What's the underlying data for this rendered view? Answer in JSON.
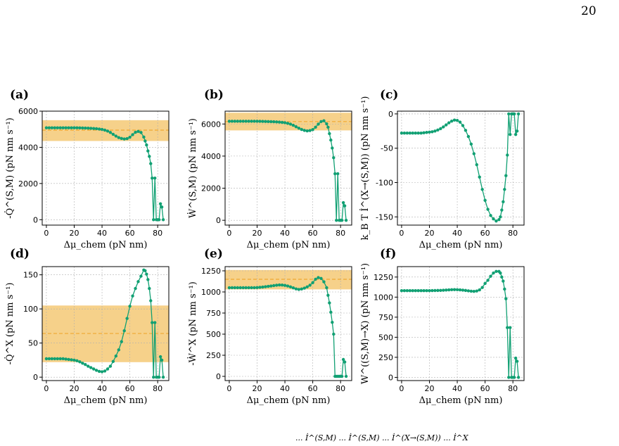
{
  "page": {
    "number": "20"
  },
  "colors": {
    "line": "#11a073",
    "band": "#f3c263",
    "band_line": "#f0a830",
    "grid": "#b0b0b0"
  },
  "chart_data": [
    {
      "letter": "(a)",
      "type": "line",
      "ylabel": "-Q̇^(S,M) (pN nm s⁻¹)",
      "xlabel": "Δμ_chem (pN nm)",
      "xlim": [
        -3,
        88
      ],
      "ylim": [
        -300,
        6000
      ],
      "xticks": [
        "0",
        "20",
        "40",
        "60",
        "80"
      ],
      "xtick_values": [
        0,
        20,
        40,
        60,
        80
      ],
      "yticks": [
        "0",
        "2000",
        "4000",
        "6000"
      ],
      "ytick_values": [
        0,
        2000,
        4000,
        6000
      ],
      "band": [
        4350,
        5500
      ],
      "mean": 4950,
      "x": [
        0,
        2,
        4,
        6,
        8,
        10,
        12,
        14,
        16,
        18,
        20,
        22,
        24,
        26,
        28,
        30,
        32,
        34,
        36,
        38,
        40,
        42,
        44,
        46,
        48,
        50,
        52,
        54,
        56,
        58,
        60,
        62,
        64,
        66,
        68,
        70,
        71,
        72,
        73,
        74,
        75,
        76,
        77,
        78,
        79,
        80,
        81,
        82,
        83,
        84
      ],
      "values": [
        5080,
        5080,
        5080,
        5080,
        5080,
        5080,
        5080,
        5080,
        5080,
        5080,
        5080,
        5080,
        5075,
        5070,
        5065,
        5060,
        5050,
        5040,
        5030,
        5010,
        4990,
        4950,
        4900,
        4820,
        4720,
        4620,
        4540,
        4490,
        4460,
        4480,
        4560,
        4700,
        4830,
        4880,
        4820,
        4570,
        4350,
        4130,
        3800,
        3500,
        3100,
        2300,
        0,
        2300,
        0,
        0,
        0,
        880,
        700,
        0
      ]
    },
    {
      "letter": "(b)",
      "type": "line",
      "ylabel": "Ẇ^(S,M) (pN nm s⁻¹)",
      "xlabel": "Δμ_chem (pN nm)",
      "xlim": [
        -3,
        88
      ],
      "ylim": [
        -300,
        6800
      ],
      "xticks": [
        "0",
        "20",
        "40",
        "60",
        "80"
      ],
      "xtick_values": [
        0,
        20,
        40,
        60,
        80
      ],
      "yticks": [
        "0",
        "2000",
        "4000",
        "6000"
      ],
      "ytick_values": [
        0,
        2000,
        4000,
        6000
      ],
      "band": [
        5600,
        6700
      ],
      "mean": 6150,
      "x": [
        0,
        2,
        4,
        6,
        8,
        10,
        12,
        14,
        16,
        18,
        20,
        22,
        24,
        26,
        28,
        30,
        32,
        34,
        36,
        38,
        40,
        42,
        44,
        46,
        48,
        50,
        52,
        54,
        56,
        58,
        60,
        62,
        64,
        66,
        68,
        70,
        71,
        72,
        73,
        74,
        75,
        76,
        77,
        78,
        79,
        80,
        81,
        82,
        83,
        84
      ],
      "values": [
        6170,
        6170,
        6170,
        6170,
        6170,
        6170,
        6170,
        6170,
        6170,
        6170,
        6170,
        6165,
        6160,
        6155,
        6150,
        6145,
        6140,
        6130,
        6120,
        6100,
        6080,
        6040,
        5990,
        5920,
        5830,
        5740,
        5660,
        5600,
        5570,
        5590,
        5650,
        5800,
        5990,
        6150,
        6200,
        6010,
        5800,
        5400,
        5000,
        4500,
        3900,
        2900,
        0,
        2900,
        0,
        0,
        0,
        1100,
        900,
        0
      ]
    },
    {
      "letter": "(c)",
      "type": "line",
      "ylabel": "k_B T İ^(X→(S,M)) (pN nm s⁻¹)",
      "xlabel": "Δμ_chem (pN nm)",
      "xlim": [
        -3,
        88
      ],
      "ylim": [
        -162,
        4
      ],
      "xticks": [
        "0",
        "20",
        "40",
        "60",
        "80"
      ],
      "xtick_values": [
        0,
        20,
        40,
        60,
        80
      ],
      "yticks": [
        "0",
        "-50",
        "-100",
        "-150"
      ],
      "ytick_values": [
        0,
        -50,
        -100,
        -150
      ],
      "x": [
        0,
        2,
        4,
        6,
        8,
        10,
        12,
        14,
        16,
        18,
        20,
        22,
        24,
        26,
        28,
        30,
        32,
        34,
        36,
        38,
        40,
        42,
        44,
        46,
        48,
        50,
        52,
        54,
        56,
        58,
        60,
        62,
        64,
        66,
        68,
        70,
        71,
        72,
        73,
        74,
        75,
        76,
        77,
        78,
        79,
        80,
        81,
        82,
        83,
        84
      ],
      "values": [
        -28,
        -28,
        -28,
        -28,
        -28,
        -28,
        -28,
        -28,
        -27.5,
        -27,
        -26.5,
        -26,
        -25,
        -23.5,
        -21.5,
        -19,
        -16,
        -13,
        -10.5,
        -9,
        -9.5,
        -12,
        -17,
        -24,
        -33,
        -44,
        -58,
        -74,
        -92,
        -110,
        -126,
        -139,
        -148,
        -153,
        -156,
        -154,
        -150,
        -140,
        -128,
        -110,
        -90,
        -60,
        0,
        -30,
        0,
        0,
        0,
        -30,
        -25,
        0
      ]
    },
    {
      "letter": "(d)",
      "type": "line",
      "ylabel": "-Q̇^X (pN nm s⁻¹)",
      "xlabel": "Δμ_chem (pN nm)",
      "xlim": [
        -3,
        88
      ],
      "ylim": [
        -5,
        162
      ],
      "xticks": [
        "0",
        "20",
        "40",
        "60",
        "80"
      ],
      "xtick_values": [
        0,
        20,
        40,
        60,
        80
      ],
      "yticks": [
        "0",
        "50",
        "100",
        "150"
      ],
      "ytick_values": [
        0,
        50,
        100,
        150
      ],
      "band": [
        22,
        105
      ],
      "mean": 64,
      "x": [
        0,
        2,
        4,
        6,
        8,
        10,
        12,
        14,
        16,
        18,
        20,
        22,
        24,
        26,
        28,
        30,
        32,
        34,
        36,
        38,
        40,
        42,
        44,
        46,
        48,
        50,
        52,
        54,
        56,
        58,
        60,
        62,
        64,
        66,
        68,
        70,
        71,
        72,
        73,
        74,
        75,
        76,
        77,
        78,
        79,
        80,
        81,
        82,
        83,
        84
      ],
      "values": [
        27,
        27,
        27,
        27,
        27,
        27,
        27,
        26.5,
        26,
        25.5,
        25,
        24,
        22.5,
        20.5,
        18.5,
        16,
        14,
        12,
        10,
        8.5,
        8,
        9,
        12,
        16,
        23,
        31,
        40,
        52,
        68,
        86,
        104,
        119,
        130,
        140,
        148,
        157,
        156,
        151,
        143,
        130,
        112,
        80,
        0,
        80,
        0,
        0,
        0,
        30,
        25,
        0
      ]
    },
    {
      "letter": "(e)",
      "type": "line",
      "ylabel": "-Ẇ^X (pN nm s⁻¹)",
      "xlabel": "Δμ_chem (pN nm)",
      "xlim": [
        -3,
        88
      ],
      "ylim": [
        -50,
        1300
      ],
      "xticks": [
        "0",
        "20",
        "40",
        "60",
        "80"
      ],
      "xtick_values": [
        0,
        20,
        40,
        60,
        80
      ],
      "yticks": [
        "0",
        "250",
        "500",
        "750",
        "1000",
        "1250"
      ],
      "ytick_values": [
        0,
        250,
        500,
        750,
        1000,
        1250
      ],
      "band": [
        1030,
        1260
      ],
      "mean": 1150,
      "x": [
        0,
        2,
        4,
        6,
        8,
        10,
        12,
        14,
        16,
        18,
        20,
        22,
        24,
        26,
        28,
        30,
        32,
        34,
        36,
        38,
        40,
        42,
        44,
        46,
        48,
        50,
        52,
        54,
        56,
        58,
        60,
        62,
        64,
        66,
        68,
        70,
        71,
        72,
        73,
        74,
        75,
        76,
        77,
        78,
        79,
        80,
        81,
        82,
        83,
        84
      ],
      "values": [
        1050,
        1050,
        1050,
        1050,
        1050,
        1050,
        1050,
        1050,
        1050,
        1050,
        1052,
        1055,
        1058,
        1062,
        1066,
        1070,
        1075,
        1080,
        1083,
        1082,
        1078,
        1070,
        1060,
        1048,
        1036,
        1030,
        1035,
        1045,
        1060,
        1080,
        1110,
        1150,
        1170,
        1160,
        1120,
        1050,
        960,
        870,
        760,
        640,
        500,
        0,
        0,
        0,
        0,
        0,
        0,
        200,
        170,
        0
      ]
    },
    {
      "letter": "(f)",
      "type": "line",
      "ylabel": "W^((S,M)→X) (pN nm s⁻¹)",
      "xlabel": "Δμ_chem (pN nm)",
      "xlim": [
        -3,
        88
      ],
      "ylim": [
        -40,
        1380
      ],
      "xticks": [
        "0",
        "20",
        "40",
        "60",
        "80"
      ],
      "xtick_values": [
        0,
        20,
        40,
        60,
        80
      ],
      "yticks": [
        "0",
        "250",
        "500",
        "750",
        "1000",
        "1250"
      ],
      "ytick_values": [
        0,
        250,
        500,
        750,
        1000,
        1250
      ],
      "x": [
        0,
        2,
        4,
        6,
        8,
        10,
        12,
        14,
        16,
        18,
        20,
        22,
        24,
        26,
        28,
        30,
        32,
        34,
        36,
        38,
        40,
        42,
        44,
        46,
        48,
        50,
        52,
        54,
        56,
        58,
        60,
        62,
        64,
        66,
        68,
        70,
        71,
        72,
        73,
        74,
        75,
        76,
        77,
        78,
        79,
        80,
        81,
        82,
        83,
        84
      ],
      "values": [
        1080,
        1080,
        1080,
        1080,
        1080,
        1080,
        1080,
        1080,
        1080,
        1080,
        1080,
        1081,
        1082,
        1083,
        1084,
        1086,
        1088,
        1090,
        1092,
        1093,
        1092,
        1090,
        1087,
        1083,
        1078,
        1074,
        1072,
        1076,
        1090,
        1120,
        1170,
        1210,
        1260,
        1300,
        1320,
        1320,
        1300,
        1250,
        1200,
        1100,
        980,
        620,
        0,
        620,
        0,
        0,
        0,
        240,
        200,
        0
      ]
    }
  ],
  "footer": {
    "formula_fragment": "... İ^(S,M) ... İ^(S,M) ... İ^(X→(S,M)) ... İ^X"
  }
}
